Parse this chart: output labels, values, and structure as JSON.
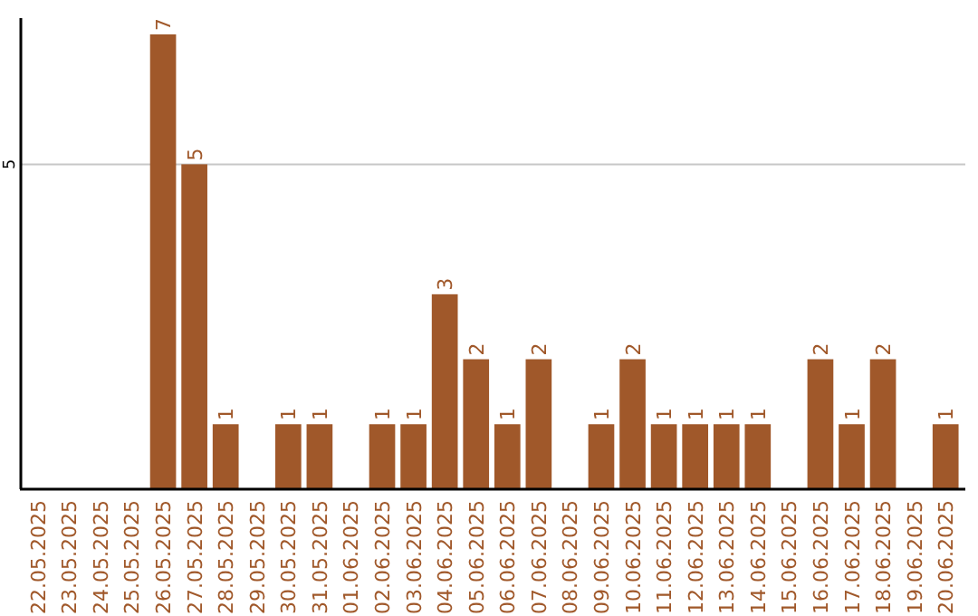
{
  "chart_data": {
    "type": "bar",
    "categories": [
      "22.05.2025",
      "23.05.2025",
      "24.05.2025",
      "25.05.2025",
      "26.05.2025",
      "27.05.2025",
      "28.05.2025",
      "29.05.2025",
      "30.05.2025",
      "31.05.2025",
      "01.06.2025",
      "02.06.2025",
      "03.06.2025",
      "04.06.2025",
      "05.06.2025",
      "06.06.2025",
      "07.06.2025",
      "08.06.2025",
      "09.06.2025",
      "10.06.2025",
      "11.06.2025",
      "12.06.2025",
      "13.06.2025",
      "14.06.2025",
      "15.06.2025",
      "16.06.2025",
      "17.06.2025",
      "18.06.2025",
      "19.06.2025",
      "20.06.2025"
    ],
    "values": [
      0,
      0,
      0,
      0,
      7,
      5,
      1,
      0,
      1,
      1,
      0,
      1,
      1,
      3,
      2,
      1,
      2,
      0,
      1,
      2,
      1,
      1,
      1,
      1,
      0,
      2,
      1,
      2,
      0,
      1
    ],
    "value_labels": [
      null,
      null,
      null,
      null,
      "7",
      "5",
      "1",
      null,
      "1",
      "1",
      null,
      "1",
      "1",
      "3",
      "2",
      "1",
      "2",
      null,
      "1",
      "2",
      "1",
      "1",
      "1",
      "1",
      null,
      "2",
      "1",
      "2",
      null,
      "1"
    ],
    "color": "#a0582a",
    "ylim": [
      0,
      7.25
    ],
    "yticks": [
      5
    ],
    "grid": "y"
  }
}
